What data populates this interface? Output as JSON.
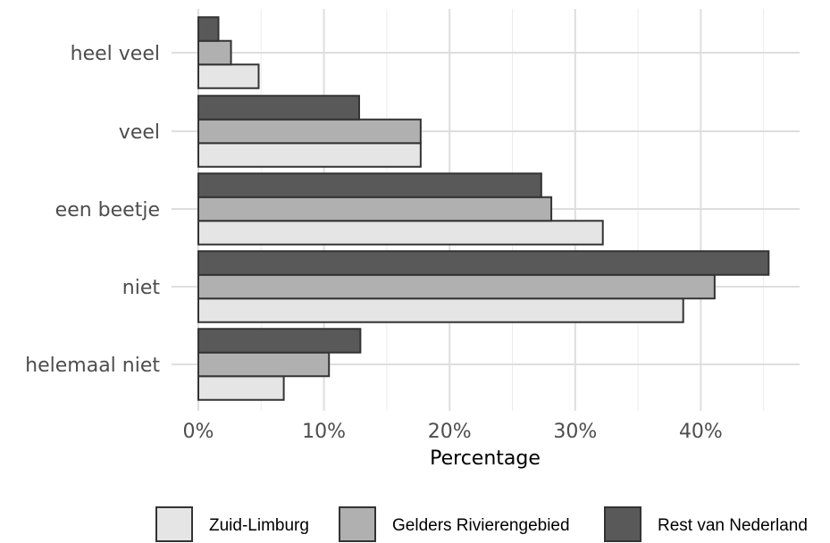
{
  "chart_data": {
    "type": "bar",
    "orientation": "horizontal",
    "title": "",
    "xlabel": "Percentage",
    "ylabel": "",
    "categories": [
      "heel veel",
      "veel",
      "een beetje",
      "niet",
      "helemaal niet"
    ],
    "xlim": [
      0,
      0.47
    ],
    "x_ticks": [
      {
        "value": 0,
        "label": "0%"
      },
      {
        "value": 0.1,
        "label": "10%"
      },
      {
        "value": 0.2,
        "label": "20%"
      },
      {
        "value": 0.3,
        "label": "30%"
      },
      {
        "value": 0.4,
        "label": "40%"
      }
    ],
    "grid": true,
    "legend_position": "bottom",
    "series": [
      {
        "name": "Zuid-Limburg",
        "color": "#e5e5e5",
        "values": [
          0.048,
          0.177,
          0.322,
          0.386,
          0.068
        ]
      },
      {
        "name": "Gelders Rivierengebied",
        "color": "#b0b0b0",
        "values": [
          0.026,
          0.177,
          0.281,
          0.411,
          0.104
        ]
      },
      {
        "name": "Rest van Nederland",
        "color": "#595959",
        "values": [
          0.016,
          0.128,
          0.273,
          0.454,
          0.129
        ]
      }
    ]
  }
}
